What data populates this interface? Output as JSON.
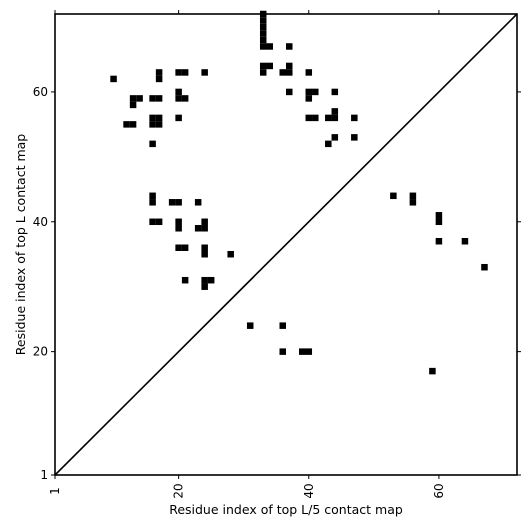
{
  "chart_data": {
    "type": "heatmap",
    "xlabel": "Residue index of top L/5 contact map",
    "ylabel": "Residue index of top L contact map",
    "xlim": [
      1,
      72
    ],
    "ylim": [
      1,
      72
    ],
    "x_ticks": [
      {
        "value": 1,
        "label": "1"
      },
      {
        "value": 20,
        "label": "20"
      },
      {
        "value": 40,
        "label": "40"
      },
      {
        "value": 60,
        "label": "60"
      }
    ],
    "y_ticks": [
      {
        "value": 1,
        "label": "1"
      },
      {
        "value": 20,
        "label": "20"
      },
      {
        "value": 40,
        "label": "40"
      },
      {
        "value": 60,
        "label": "60"
      }
    ],
    "diagonal": true,
    "cell_color": "#000000",
    "background": "#ffffff",
    "upper_contacts": [
      [
        10,
        62
      ],
      [
        13,
        59
      ],
      [
        14,
        59
      ],
      [
        13,
        58
      ],
      [
        12,
        55
      ],
      [
        13,
        55
      ],
      [
        16,
        59
      ],
      [
        17,
        59
      ],
      [
        17,
        63
      ],
      [
        17,
        62
      ],
      [
        16,
        56
      ],
      [
        17,
        56
      ],
      [
        16,
        55
      ],
      [
        17,
        55
      ],
      [
        16,
        52
      ],
      [
        20,
        63
      ],
      [
        21,
        63
      ],
      [
        20,
        60
      ],
      [
        20,
        59
      ],
      [
        21,
        59
      ],
      [
        20,
        56
      ],
      [
        24,
        63
      ],
      [
        33,
        72
      ],
      [
        33,
        71
      ],
      [
        33,
        70
      ],
      [
        33,
        69
      ],
      [
        33,
        68
      ],
      [
        33,
        67
      ],
      [
        34,
        67
      ],
      [
        33,
        64
      ],
      [
        34,
        64
      ],
      [
        33,
        63
      ],
      [
        37,
        67
      ],
      [
        36,
        63
      ],
      [
        37,
        63
      ],
      [
        37,
        64
      ],
      [
        37,
        60
      ],
      [
        40,
        63
      ],
      [
        40,
        60
      ],
      [
        41,
        60
      ],
      [
        40,
        59
      ],
      [
        40,
        56
      ],
      [
        41,
        56
      ],
      [
        44,
        60
      ],
      [
        43,
        56
      ],
      [
        44,
        56
      ],
      [
        44,
        57
      ],
      [
        44,
        53
      ],
      [
        43,
        52
      ],
      [
        47,
        56
      ],
      [
        47,
        53
      ],
      [
        16,
        44
      ],
      [
        16,
        43
      ],
      [
        19,
        43
      ],
      [
        20,
        43
      ],
      [
        23,
        43
      ],
      [
        16,
        40
      ],
      [
        17,
        40
      ],
      [
        20,
        40
      ],
      [
        20,
        39
      ],
      [
        23,
        39
      ],
      [
        24,
        39
      ],
      [
        24,
        40
      ],
      [
        20,
        36
      ],
      [
        21,
        36
      ],
      [
        24,
        36
      ],
      [
        24,
        35
      ],
      [
        28,
        35
      ],
      [
        21,
        31
      ],
      [
        24,
        31
      ],
      [
        25,
        31
      ],
      [
        24,
        30
      ]
    ],
    "lower_contacts": [
      [
        53,
        44
      ],
      [
        56,
        44
      ],
      [
        56,
        43
      ],
      [
        60,
        41
      ],
      [
        60,
        40
      ],
      [
        60,
        37
      ],
      [
        64,
        37
      ],
      [
        67,
        33
      ],
      [
        31,
        24
      ],
      [
        36,
        24
      ],
      [
        36,
        20
      ],
      [
        39,
        20
      ],
      [
        40,
        20
      ],
      [
        59,
        17
      ]
    ]
  }
}
